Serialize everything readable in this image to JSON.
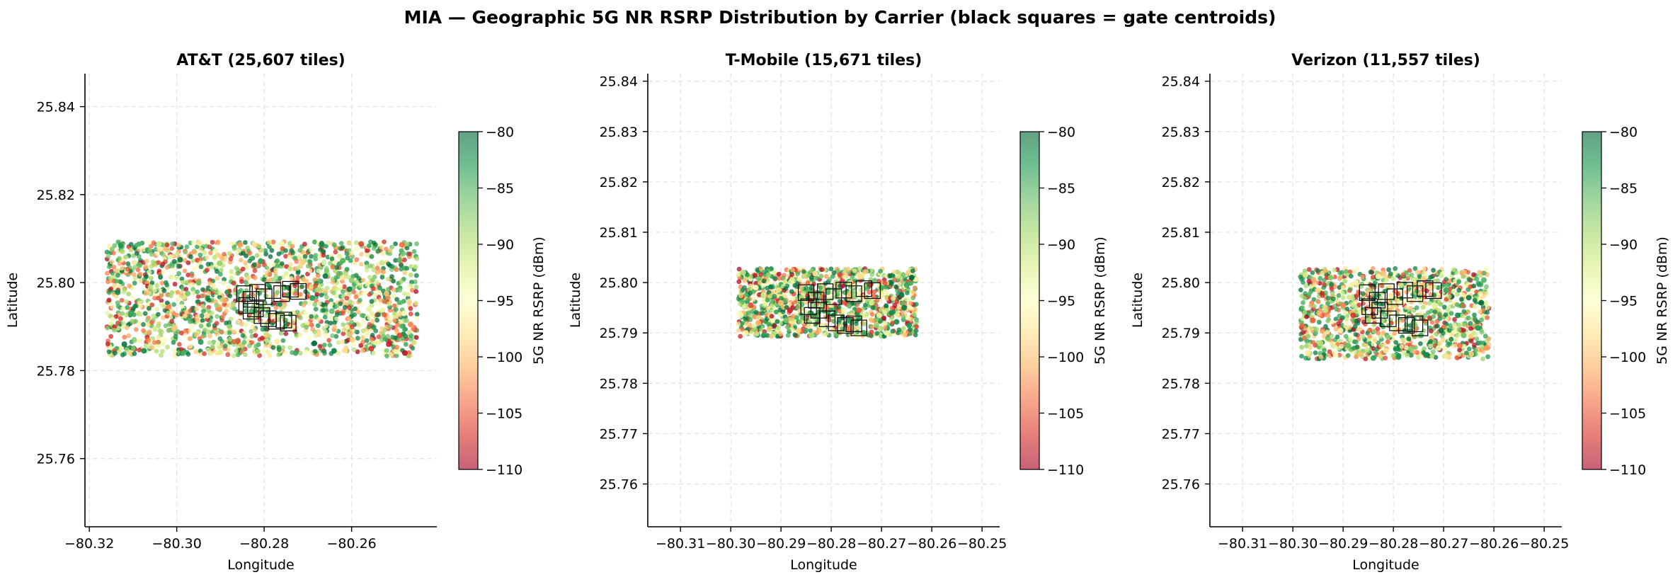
{
  "figure": {
    "suptitle": "MIA — Geographic 5G NR RSRP Distribution by Carrier  (black squares = gate centroids)"
  },
  "colormap": {
    "name": "RdYlGn",
    "stops": [
      "#a50026",
      "#d73027",
      "#f46d43",
      "#fdae61",
      "#fee08b",
      "#ffffbf",
      "#d9ef8b",
      "#a6d96a",
      "#66bd63",
      "#1a9850",
      "#006837"
    ]
  },
  "chart_data": [
    {
      "type": "scatter",
      "title": "AT&T  (25,607 tiles)",
      "xlabel": "Longitude",
      "ylabel": "Latitude",
      "xlim": [
        -80.321,
        -80.2405
      ],
      "ylim": [
        25.7445,
        25.8475
      ],
      "xticks": [
        -80.32,
        -80.3,
        -80.28,
        -80.26
      ],
      "xtick_labels": [
        "−80.32",
        "−80.30",
        "−80.28",
        "−80.26"
      ],
      "yticks": [
        25.76,
        25.78,
        25.8,
        25.82,
        25.84
      ],
      "ytick_labels": [
        "25.76",
        "25.78",
        "25.80",
        "25.82",
        "25.84"
      ],
      "grid": true,
      "colorbar": {
        "label": "5G NR RSRP (dBm)",
        "range": [
          -110,
          -80
        ],
        "ticks": [
          -80,
          -85,
          -90,
          -95,
          -100,
          -105,
          -110
        ],
        "tick_labels": [
          "−80",
          "−85",
          "−90",
          "−95",
          "−100",
          "−105",
          "−110"
        ]
      },
      "coverage": {
        "lon": [
          -80.316,
          -80.245
        ],
        "lat": [
          25.7833,
          25.8093
        ]
      },
      "points": [
        [
          -80.3128,
          25.8085,
          -83
        ],
        [
          -80.3085,
          25.804,
          -86
        ],
        [
          -80.304,
          25.8088,
          -92
        ],
        [
          -80.2992,
          25.8052,
          -81
        ],
        [
          -80.2948,
          25.809,
          -97
        ],
        [
          -80.2902,
          25.8044,
          -88
        ],
        [
          -80.2855,
          25.8086,
          -102
        ],
        [
          -80.2808,
          25.8048,
          -84
        ],
        [
          -80.276,
          25.8089,
          -94
        ],
        [
          -80.2712,
          25.8046,
          -99
        ],
        [
          -80.2668,
          25.8087,
          -82
        ],
        [
          -80.262,
          25.805,
          -85
        ],
        [
          -80.2578,
          25.8088,
          -106
        ],
        [
          -80.253,
          25.8045,
          -91
        ],
        [
          -80.2485,
          25.8086,
          -104
        ],
        [
          -80.3135,
          25.7978,
          -82
        ],
        [
          -80.3105,
          25.793,
          -84
        ],
        [
          -80.306,
          25.799,
          -90
        ],
        [
          -80.3018,
          25.7945,
          -103
        ],
        [
          -80.2975,
          25.7975,
          -87
        ],
        [
          -80.293,
          25.7925,
          -98
        ],
        [
          -80.289,
          25.796,
          -101
        ],
        [
          -80.269,
          25.7965,
          -83
        ],
        [
          -80.2645,
          25.7935,
          -86
        ],
        [
          -80.2605,
          25.7985,
          -81
        ],
        [
          -80.256,
          25.794,
          -93
        ],
        [
          -80.252,
          25.7975,
          -100
        ],
        [
          -80.248,
          25.793,
          -96
        ],
        [
          -80.312,
          25.786,
          -81
        ],
        [
          -80.3075,
          25.7845,
          -82
        ],
        [
          -80.303,
          25.787,
          -95
        ],
        [
          -80.2985,
          25.784,
          -85
        ],
        [
          -80.2945,
          25.7865,
          -83
        ],
        [
          -80.29,
          25.7842,
          -92
        ],
        [
          -80.286,
          25.7868,
          -105
        ],
        [
          -80.2815,
          25.7843,
          -89
        ],
        [
          -80.277,
          25.7866,
          -97
        ],
        [
          -80.2728,
          25.784,
          -84
        ],
        [
          -80.2685,
          25.7862,
          -80
        ],
        [
          -80.264,
          25.7845,
          -82
        ],
        [
          -80.2598,
          25.787,
          -99
        ],
        [
          -80.2555,
          25.785,
          -107
        ],
        [
          -80.2515,
          25.786,
          -108
        ],
        [
          -80.2478,
          25.784,
          -109
        ],
        [
          -80.249,
          25.788,
          -106
        ],
        [
          -80.2465,
          25.7905,
          -103
        ],
        [
          -80.3,
          25.801,
          -94
        ],
        [
          -80.295,
          25.8,
          -86
        ],
        [
          -80.266,
          25.8015,
          -81
        ],
        [
          -80.26,
          25.8005,
          -88
        ]
      ],
      "gates": [
        [
          -80.2845,
          25.7975
        ],
        [
          -80.283,
          25.7962
        ],
        [
          -80.2815,
          25.7978
        ],
        [
          -80.28,
          25.7968
        ],
        [
          -80.278,
          25.7982
        ],
        [
          -80.276,
          25.7975
        ],
        [
          -80.274,
          25.7985
        ],
        [
          -80.2722,
          25.798
        ],
        [
          -80.284,
          25.7948
        ],
        [
          -80.282,
          25.794
        ],
        [
          -80.2805,
          25.7925
        ],
        [
          -80.279,
          25.7918
        ],
        [
          -80.2772,
          25.7912
        ],
        [
          -80.2755,
          25.7915
        ],
        [
          -80.2745,
          25.7908
        ],
        [
          -80.283,
          25.7935
        ]
      ]
    },
    {
      "type": "scatter",
      "title": "T-Mobile  (15,671 tiles)",
      "xlabel": "Longitude",
      "ylabel": "Latitude",
      "xlim": [
        -80.3165,
        -80.2465
      ],
      "ylim": [
        25.7515,
        25.8415
      ],
      "xticks": [
        -80.31,
        -80.3,
        -80.29,
        -80.28,
        -80.27,
        -80.26,
        -80.25
      ],
      "xtick_labels": [
        "−80.31",
        "−80.30",
        "−80.29",
        "−80.28",
        "−80.27",
        "−80.26",
        "−80.25"
      ],
      "yticks": [
        25.76,
        25.77,
        25.78,
        25.79,
        25.8,
        25.81,
        25.82,
        25.83,
        25.84
      ],
      "ytick_labels": [
        "25.76",
        "25.77",
        "25.78",
        "25.79",
        "25.80",
        "25.81",
        "25.82",
        "25.83",
        "25.84"
      ],
      "grid": true,
      "colorbar": {
        "label": "5G NR RSRP (dBm)",
        "range": [
          -110,
          -80
        ],
        "ticks": [
          -80,
          -85,
          -90,
          -95,
          -100,
          -105,
          -110
        ],
        "tick_labels": [
          "−80",
          "−85",
          "−90",
          "−95",
          "−100",
          "−105",
          "−110"
        ]
      },
      "coverage": {
        "lon": [
          -80.2985,
          -80.263
        ],
        "lat": [
          25.7893,
          25.8028
        ]
      },
      "points": [
        [
          -80.2975,
          25.802,
          -90
        ],
        [
          -80.295,
          25.799,
          -95
        ],
        [
          -80.2925,
          25.8015,
          -88
        ],
        [
          -80.29,
          25.796,
          -100
        ],
        [
          -80.2878,
          25.8005,
          -93
        ],
        [
          -80.2855,
          25.793,
          -86
        ],
        [
          -80.2832,
          25.8018,
          -97
        ],
        [
          -80.281,
          25.795,
          -104
        ],
        [
          -80.279,
          25.8,
          -90
        ],
        [
          -80.2765,
          25.7925,
          -84
        ],
        [
          -80.2742,
          25.8012,
          -98
        ],
        [
          -80.272,
          25.796,
          -92
        ],
        [
          -80.27,
          25.799,
          -85
        ],
        [
          -80.268,
          25.794,
          -82
        ],
        [
          -80.266,
          25.7975,
          -81
        ],
        [
          -80.2645,
          25.7915,
          -83
        ],
        [
          -80.264,
          25.801,
          -80
        ],
        [
          -80.297,
          25.79,
          -96
        ],
        [
          -80.2945,
          25.792,
          -101
        ],
        [
          -80.2915,
          25.7898,
          -91
        ],
        [
          -80.289,
          25.7925,
          -87
        ],
        [
          -80.2865,
          25.7905,
          -99
        ],
        [
          -80.284,
          25.7895,
          -89
        ],
        [
          -80.2815,
          25.791,
          -95
        ],
        [
          -80.279,
          25.7898,
          -86
        ],
        [
          -80.2765,
          25.7908,
          -103
        ],
        [
          -80.2735,
          25.79,
          -84
        ],
        [
          -80.271,
          25.7915,
          -88
        ],
        [
          -80.269,
          25.79,
          -93
        ],
        [
          -80.267,
          25.7922,
          -82
        ],
        [
          -80.296,
          25.7955,
          -106
        ],
        [
          -80.2935,
          25.7975,
          -92
        ],
        [
          -80.2905,
          25.7985,
          -98
        ],
        [
          -80.2882,
          25.7945,
          -108
        ],
        [
          -80.2745,
          25.7945,
          -105
        ],
        [
          -80.2705,
          25.7935,
          -97
        ],
        [
          -80.2655,
          25.795,
          -81
        ],
        [
          -80.265,
          25.7995,
          -84
        ],
        [
          -80.298,
          25.7935,
          -94
        ],
        [
          -80.286,
          25.797,
          -89
        ]
      ],
      "gates": [
        [
          -80.285,
          25.798
        ],
        [
          -80.283,
          25.7965
        ],
        [
          -80.2812,
          25.7982
        ],
        [
          -80.2795,
          25.7972
        ],
        [
          -80.2775,
          25.7985
        ],
        [
          -80.2755,
          25.7978
        ],
        [
          -80.2735,
          25.7988
        ],
        [
          -80.2718,
          25.7984
        ],
        [
          -80.2845,
          25.7952
        ],
        [
          -80.2825,
          25.7945
        ],
        [
          -80.2808,
          25.7928
        ],
        [
          -80.279,
          25.792
        ],
        [
          -80.2772,
          25.7915
        ],
        [
          -80.2755,
          25.7918
        ],
        [
          -80.2745,
          25.791
        ],
        [
          -80.2838,
          25.7935
        ]
      ]
    },
    {
      "type": "scatter",
      "title": "Verizon  (11,557 tiles)",
      "xlabel": "Longitude",
      "ylabel": "Latitude",
      "xlim": [
        -80.3165,
        -80.2465
      ],
      "ylim": [
        25.7515,
        25.8415
      ],
      "xticks": [
        -80.31,
        -80.3,
        -80.29,
        -80.28,
        -80.27,
        -80.26,
        -80.25
      ],
      "xtick_labels": [
        "−80.31",
        "−80.30",
        "−80.29",
        "−80.28",
        "−80.27",
        "−80.26",
        "−80.25"
      ],
      "yticks": [
        25.76,
        25.77,
        25.78,
        25.79,
        25.8,
        25.81,
        25.82,
        25.83,
        25.84
      ],
      "ytick_labels": [
        "25.76",
        "25.77",
        "25.78",
        "25.79",
        "25.80",
        "25.81",
        "25.82",
        "25.83",
        "25.84"
      ],
      "grid": true,
      "colorbar": {
        "label": "5G NR RSRP (dBm)",
        "range": [
          -110,
          -80
        ],
        "ticks": [
          -80,
          -85,
          -90,
          -95,
          -100,
          -105,
          -110
        ],
        "tick_labels": [
          "−80",
          "−85",
          "−90",
          "−95",
          "−100",
          "−105",
          "−110"
        ]
      },
      "coverage": {
        "lon": [
          -80.2985,
          -80.261
        ],
        "lat": [
          25.7848,
          25.8028
        ]
      },
      "points": [
        [
          -80.2975,
          25.8015,
          -92
        ],
        [
          -80.295,
          25.7985,
          -98
        ],
        [
          -80.2925,
          25.801,
          -87
        ],
        [
          -80.29,
          25.7955,
          -103
        ],
        [
          -80.2875,
          25.8,
          -94
        ],
        [
          -80.285,
          25.7925,
          -89
        ],
        [
          -80.283,
          25.8012,
          -96
        ],
        [
          -80.2808,
          25.7945,
          -101
        ],
        [
          -80.2785,
          25.7995,
          -91
        ],
        [
          -80.276,
          25.792,
          -86
        ],
        [
          -80.274,
          25.8008,
          -99
        ],
        [
          -80.2718,
          25.7955,
          -93
        ],
        [
          -80.2695,
          25.7985,
          -84
        ],
        [
          -80.2672,
          25.7935,
          -82
        ],
        [
          -80.265,
          25.797,
          -81
        ],
        [
          -80.2632,
          25.791,
          -83
        ],
        [
          -80.262,
          25.8005,
          -85
        ],
        [
          -80.2615,
          25.787,
          -102
        ],
        [
          -80.297,
          25.786,
          -97
        ],
        [
          -80.2945,
          25.788,
          -90
        ],
        [
          -80.2915,
          25.7855,
          -95
        ],
        [
          -80.289,
          25.7875,
          -86
        ],
        [
          -80.2865,
          25.7858,
          -100
        ],
        [
          -80.284,
          25.785,
          -84
        ],
        [
          -80.2815,
          25.7865,
          -97
        ],
        [
          -80.279,
          25.7852,
          -83
        ],
        [
          -80.2765,
          25.7868,
          -88
        ],
        [
          -80.2735,
          25.7856,
          -82
        ],
        [
          -80.271,
          25.787,
          -94
        ],
        [
          -80.269,
          25.7852,
          -98
        ],
        [
          -80.2668,
          25.7875,
          -104
        ],
        [
          -80.2645,
          25.7858,
          -99
        ],
        [
          -80.296,
          25.7925,
          -105
        ],
        [
          -80.2935,
          25.7945,
          -91
        ],
        [
          -80.2905,
          25.7905,
          -96
        ],
        [
          -80.288,
          25.7935,
          -107
        ],
        [
          -80.2745,
          25.7895,
          -85
        ],
        [
          -80.2705,
          25.7905,
          -81
        ],
        [
          -80.266,
          25.7895,
          -86
        ],
        [
          -80.2625,
          25.796,
          -80
        ]
      ],
      "gates": [
        [
          -80.2852,
          25.798
        ],
        [
          -80.2832,
          25.7965
        ],
        [
          -80.2814,
          25.7982
        ],
        [
          -80.2797,
          25.7972
        ],
        [
          -80.2777,
          25.7985
        ],
        [
          -80.2757,
          25.7978
        ],
        [
          -80.2737,
          25.7988
        ],
        [
          -80.272,
          25.7984
        ],
        [
          -80.2847,
          25.7952
        ],
        [
          -80.2827,
          25.7945
        ],
        [
          -80.281,
          25.7928
        ],
        [
          -80.2792,
          25.792
        ],
        [
          -80.2774,
          25.7915
        ],
        [
          -80.2757,
          25.7918
        ],
        [
          -80.2747,
          25.791
        ],
        [
          -80.284,
          25.7935
        ]
      ]
    }
  ]
}
